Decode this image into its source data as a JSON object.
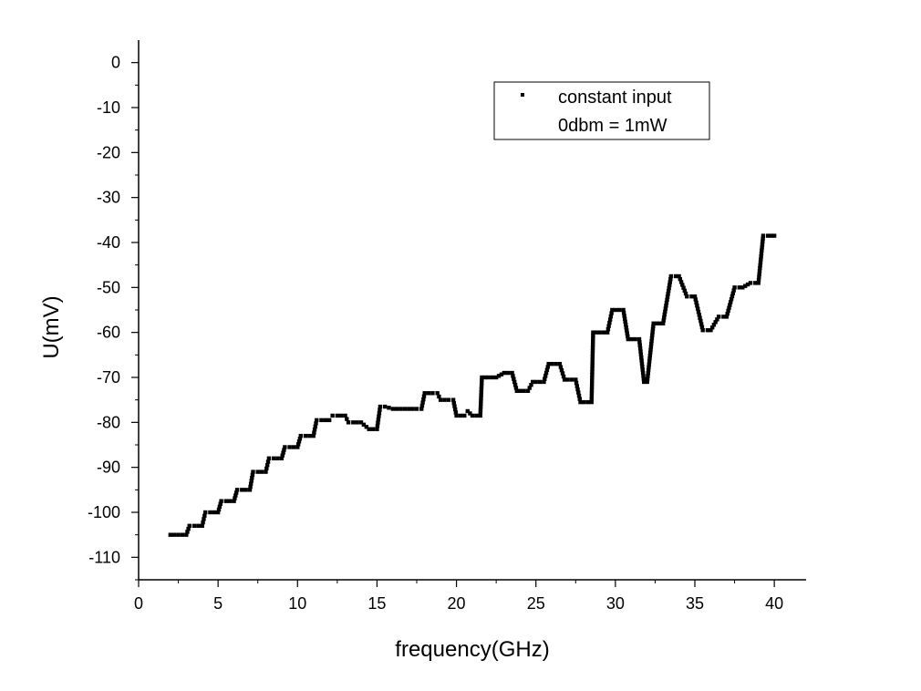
{
  "chart_data": {
    "type": "scatter",
    "title": "",
    "xlabel": "frequency(GHz)",
    "ylabel": "U(mV)",
    "xlim": [
      0,
      42
    ],
    "ylim": [
      -115,
      5
    ],
    "xticks": [
      0,
      5,
      10,
      15,
      20,
      25,
      30,
      35,
      40
    ],
    "yticks": [
      0,
      -10,
      -20,
      -30,
      -40,
      -50,
      -60,
      -70,
      -80,
      -90,
      -100,
      -110
    ],
    "grid": false,
    "legend": {
      "placement": "top-right",
      "entries": [
        "constant input",
        "0dbm = 1mW"
      ]
    },
    "series": [
      {
        "name": "constant input",
        "color": "#000000",
        "marker": "square",
        "x": [
          2.0,
          2.5,
          3.0,
          3.2,
          3.5,
          4.0,
          4.2,
          4.5,
          5.0,
          5.2,
          5.5,
          6.0,
          6.2,
          6.5,
          7.0,
          7.2,
          7.5,
          8.0,
          8.2,
          8.5,
          9.0,
          9.2,
          9.5,
          10.0,
          10.2,
          10.5,
          11.0,
          11.2,
          11.5,
          12.0,
          12.2,
          12.5,
          13.0,
          13.2,
          13.5,
          14.0,
          14.5,
          15.0,
          15.2,
          15.5,
          16.0,
          16.5,
          17.0,
          17.5,
          17.8,
          18.0,
          18.5,
          18.8,
          19.0,
          19.5,
          19.8,
          20.0,
          20.5,
          20.7,
          21.0,
          21.5,
          21.6,
          22.0,
          22.5,
          23.0,
          23.5,
          23.8,
          24.0,
          24.5,
          24.8,
          25.0,
          25.5,
          25.8,
          26.0,
          26.5,
          26.8,
          27.0,
          27.5,
          27.8,
          28.0,
          28.5,
          28.6,
          29.0,
          29.5,
          29.8,
          30.0,
          30.5,
          30.8,
          31.0,
          31.5,
          31.8,
          32.0,
          32.4,
          32.8,
          33.0,
          33.5,
          33.8,
          34.0,
          34.5,
          34.8,
          35.0,
          35.5,
          35.8,
          36.0,
          36.5,
          36.8,
          37.0,
          37.5,
          37.8,
          38.0,
          38.5,
          38.8,
          39.0,
          39.3,
          39.6,
          40.0
        ],
        "y": [
          -105,
          -105,
          -105,
          -103,
          -103,
          -103,
          -100,
          -100,
          -100,
          -97.5,
          -97.5,
          -97.5,
          -95,
          -95,
          -95,
          -91,
          -91,
          -91,
          -88,
          -88,
          -88,
          -85.5,
          -85.5,
          -85.5,
          -83,
          -83,
          -83,
          -79.5,
          -79.5,
          -79.5,
          -78.5,
          -78.5,
          -78.5,
          -80,
          -80,
          -80,
          -81.5,
          -81.5,
          -76.5,
          -76.5,
          -77,
          -77,
          -77,
          -77,
          -77,
          -73.5,
          -73.5,
          -73.5,
          -75,
          -75,
          -75,
          -78.5,
          -78.5,
          -77.5,
          -78.5,
          -78.5,
          -70,
          -70,
          -70,
          -69,
          -69,
          -73,
          -73,
          -73,
          -71,
          -71,
          -71,
          -67,
          -67,
          -67,
          -70.5,
          -70.5,
          -70.5,
          -75.5,
          -75.5,
          -75.5,
          -60,
          -60,
          -60,
          -55,
          -55,
          -55,
          -61.5,
          -61.5,
          -61.5,
          -71,
          -71,
          -58,
          -58,
          -58,
          -47.5,
          -47.5,
          -47.5,
          -52,
          -52,
          -52,
          -59.5,
          -59.5,
          -59.5,
          -56.5,
          -56.5,
          -56.5,
          -50,
          -50,
          -50,
          -49,
          -49,
          -49,
          -38.5,
          -38.5,
          -38.5
        ]
      }
    ]
  }
}
